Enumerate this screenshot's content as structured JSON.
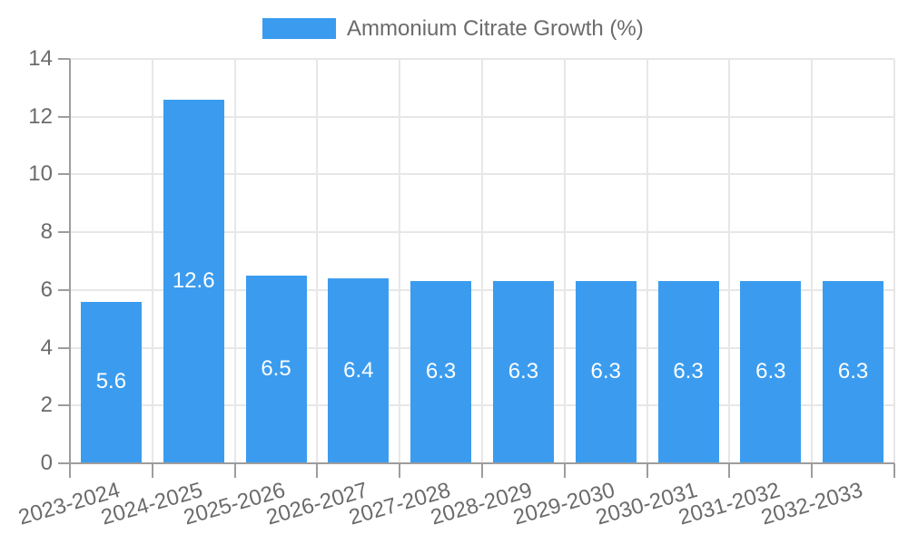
{
  "legend": {
    "label": "Ammonium Citrate Growth (%)"
  },
  "chart_data": {
    "type": "bar",
    "title": "",
    "categories": [
      "2023-2024",
      "2024-2025",
      "2025-2026",
      "2026-2027",
      "2027-2028",
      "2028-2029",
      "2029-2030",
      "2030-2031",
      "2031-2032",
      "2032-2033"
    ],
    "series": [
      {
        "name": "Ammonium Citrate Growth (%)",
        "values": [
          5.6,
          12.6,
          6.5,
          6.4,
          6.3,
          6.3,
          6.3,
          6.3,
          6.3,
          6.3
        ]
      }
    ],
    "value_labels": [
      "5.6",
      "12.6",
      "6.5",
      "6.4",
      "6.3",
      "6.3",
      "6.3",
      "6.3",
      "6.3",
      "6.3"
    ],
    "xlabel": "",
    "ylabel": "",
    "ylim": [
      0,
      14
    ],
    "yticks": [
      0,
      2,
      4,
      6,
      8,
      10,
      12,
      14
    ],
    "grid": true,
    "legend_position": "top"
  },
  "colors": {
    "bar": "#3b9cef",
    "bar_value_text": "#ffffff",
    "axis": "#9d9d9d",
    "grid": "#e7e7e7",
    "text": "#6b6b6b",
    "background": "#ffffff"
  }
}
